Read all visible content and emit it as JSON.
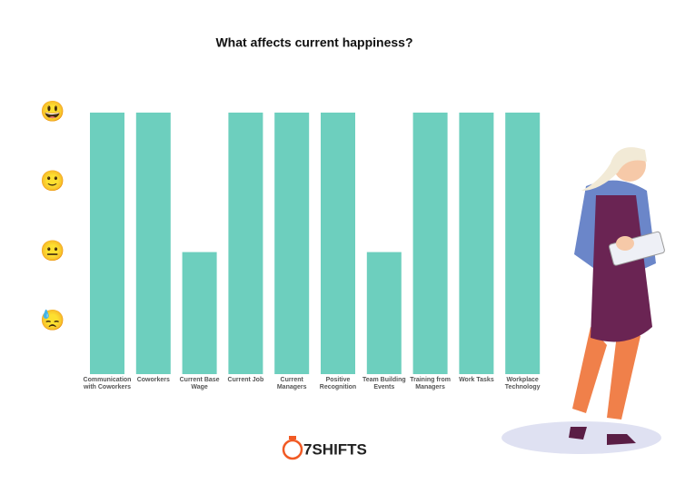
{
  "chart_data": {
    "type": "bar",
    "title": "What affects current happiness?",
    "categories": [
      "Communication with Coworkers",
      "Coworkers",
      "Current Base Wage",
      "Current Job",
      "Current Managers",
      "Positive Recognition",
      "Team Building Events",
      "Training from Managers",
      "Work Tasks",
      "Workplace Technology"
    ],
    "values": [
      4,
      4,
      2,
      4,
      4,
      4,
      2,
      4,
      4,
      4
    ],
    "color": "#6dcfbe",
    "ylim": [
      0.25,
      4
    ],
    "yticks": [
      {
        "value": 4,
        "label": "😃"
      },
      {
        "value": 3,
        "label": "🙂"
      },
      {
        "value": 2,
        "label": "😐"
      },
      {
        "value": 1,
        "label": "😓"
      }
    ],
    "grid": false
  },
  "logo": "7SHIFTS"
}
